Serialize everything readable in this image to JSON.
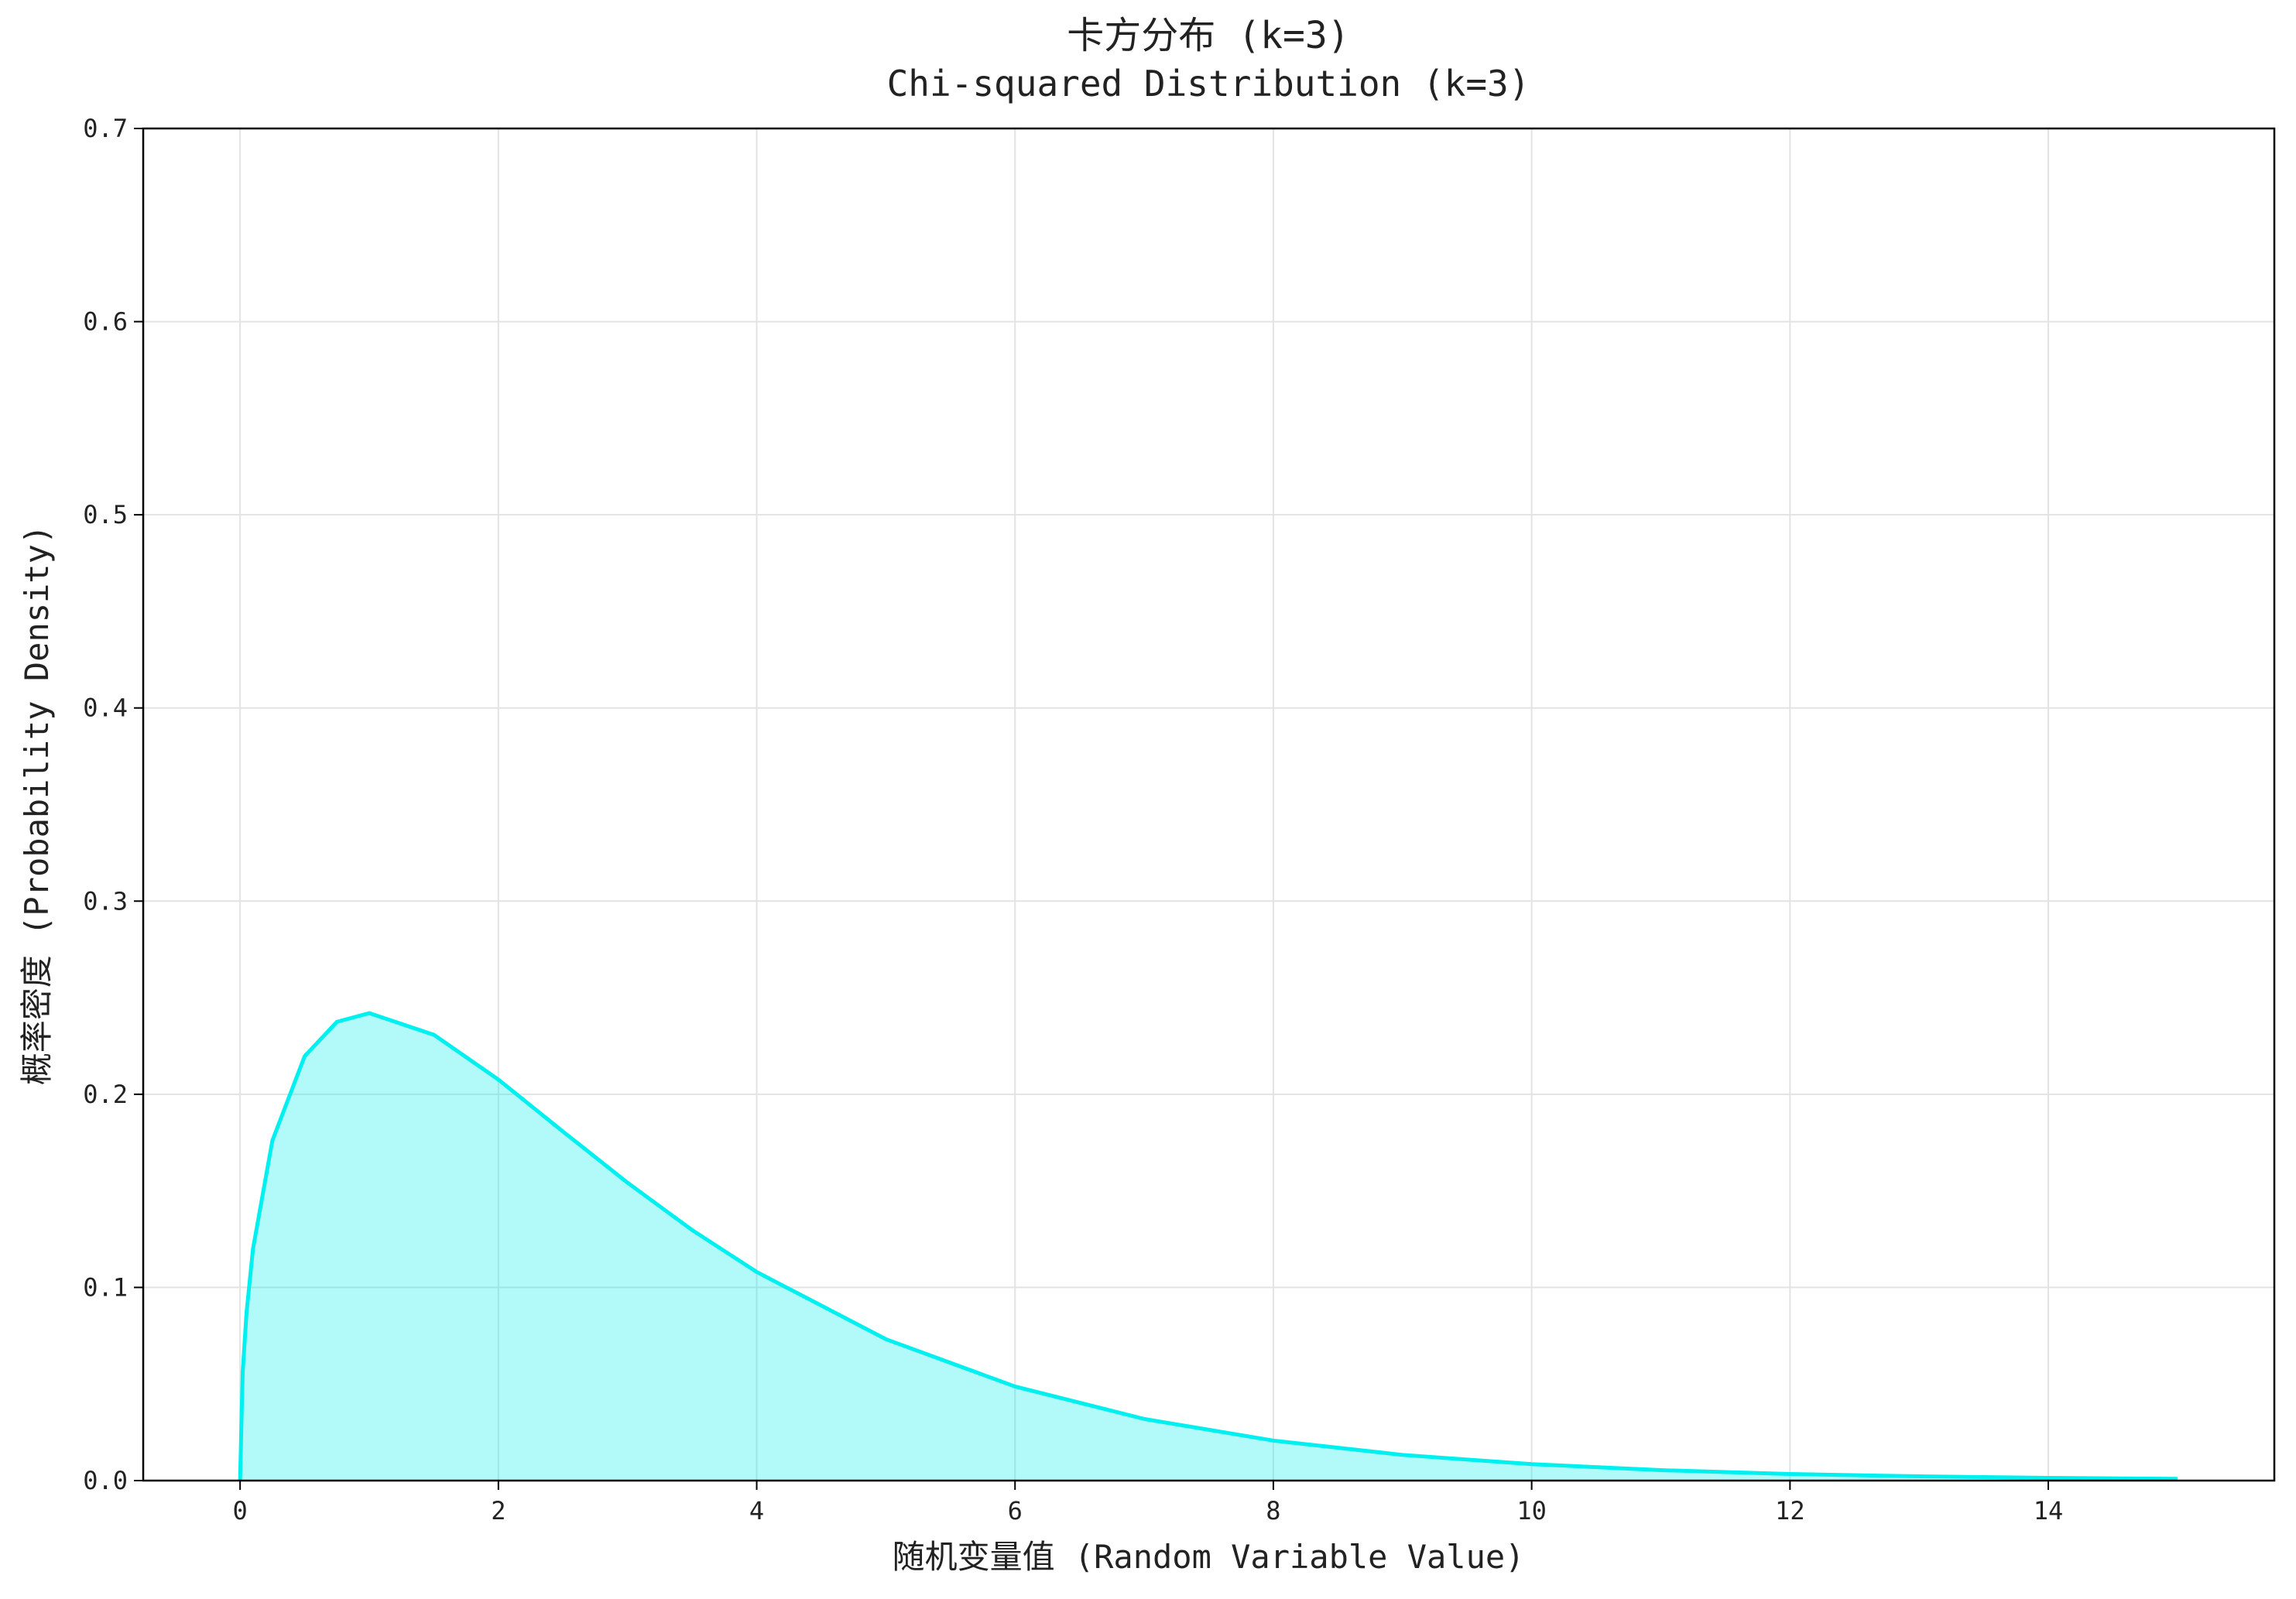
{
  "chart_data": {
    "type": "area",
    "title": "卡方分布 (k=3)",
    "subtitle": "Chi-squared Distribution (k=3)",
    "x_label": "随机变量值 (Random Variable Value)",
    "y_label": "概率密度 (Probability Density)",
    "x": [
      0,
      0.02,
      0.05,
      0.1,
      0.25,
      0.5,
      0.75,
      1,
      1.5,
      2,
      2.5,
      3,
      3.5,
      4,
      5,
      6,
      7,
      8,
      9,
      10,
      11,
      12,
      13,
      14,
      15
    ],
    "values": [
      0,
      0.0559,
      0.087,
      0.12,
      0.176,
      0.2197,
      0.2375,
      0.242,
      0.2308,
      0.2076,
      0.1807,
      0.1542,
      0.1297,
      0.108,
      0.0732,
      0.0487,
      0.0319,
      0.0207,
      0.0133,
      0.0085,
      0.0054,
      0.0034,
      0.0022,
      0.0014,
      0.0009
    ],
    "color": "#00f0f0",
    "fill_alpha": 0.3,
    "xlim": [
      -0.75,
      15.75
    ],
    "xticks": [
      0,
      2,
      4,
      6,
      8,
      10,
      12,
      14
    ],
    "ylim": [
      0,
      0.7
    ],
    "yticks": [
      {
        "value": 0,
        "label": "0.0"
      },
      0.1,
      0.2,
      0.3,
      0.4,
      0.5,
      0.6,
      0.7
    ],
    "grid": true
  }
}
